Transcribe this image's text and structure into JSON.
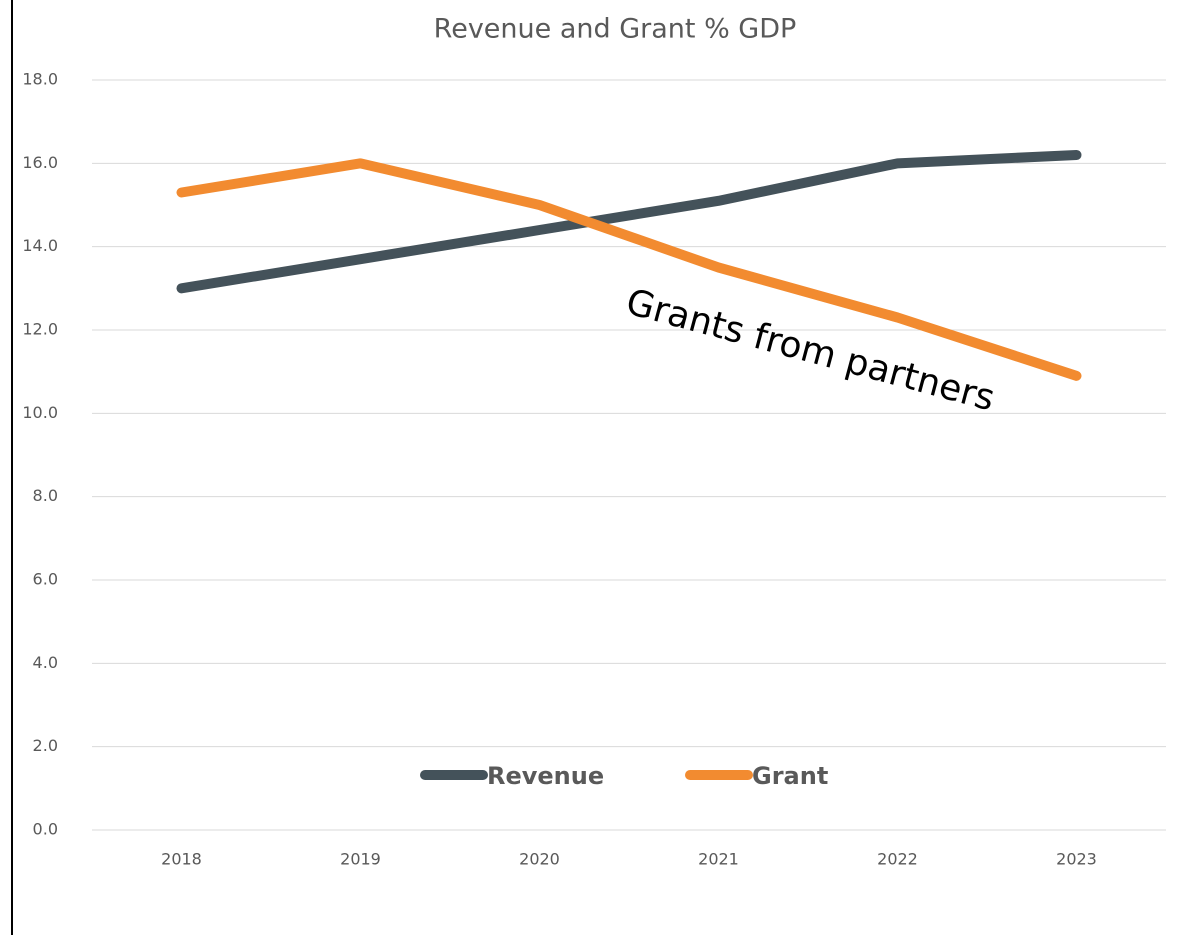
{
  "chart_data": {
    "type": "line",
    "title": "Revenue and Grant % GDP",
    "categories": [
      "2018",
      "2019",
      "2020",
      "2021",
      "2022",
      "2023"
    ],
    "series": [
      {
        "name": "Revenue",
        "color": "#44525a",
        "values": [
          13.0,
          13.7,
          14.4,
          15.1,
          16.0,
          16.2
        ]
      },
      {
        "name": "Grant",
        "color": "#f28b30",
        "values": [
          15.3,
          16.0,
          15.0,
          13.5,
          12.3,
          10.9
        ]
      }
    ],
    "ylim": [
      0,
      18
    ],
    "yticks": [
      {
        "value": 0,
        "label": "0.0"
      },
      {
        "value": 2,
        "label": "2.0"
      },
      {
        "value": 4,
        "label": "4.0"
      },
      {
        "value": 6,
        "label": "6.0"
      },
      {
        "value": 8,
        "label": "8.0"
      },
      {
        "value": 10,
        "label": "10.0"
      },
      {
        "value": 12,
        "label": "12.0"
      },
      {
        "value": 14,
        "label": "14.0"
      },
      {
        "value": 16,
        "label": "16.0"
      },
      {
        "value": 18,
        "label": "18.0"
      }
    ],
    "grid": true,
    "legend": "bottom",
    "annotations": [
      "Grants from partners"
    ]
  }
}
